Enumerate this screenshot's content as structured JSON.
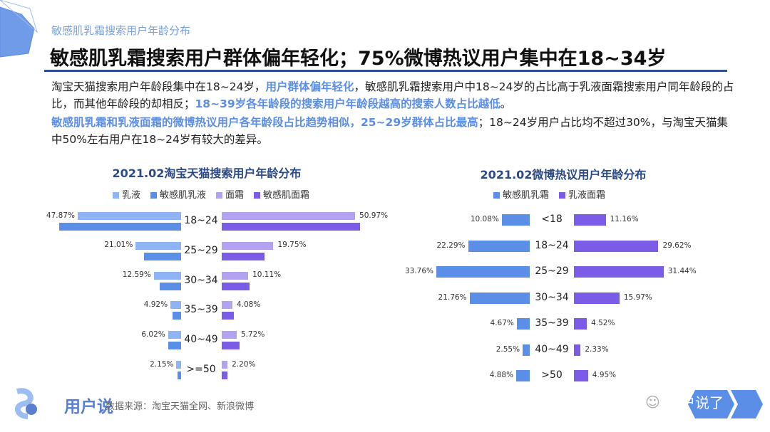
{
  "header": {
    "subtitle": "敏感肌乳霜搜索用户年龄分布",
    "title": "敏感肌乳霜搜索用户群体偏年轻化；75%微博热议用户集中在18~34岁"
  },
  "body": {
    "p1_a": "淘宝天猫搜索用户年龄段集中在18~24岁，",
    "p1_b": "用户群体偏年轻化",
    "p1_c": "，敏感肌乳霜搜索用户中18~24岁的占比高于乳液面霜搜索用户同年龄段的占比，而其他年龄段的却相反；",
    "p1_d": "18~39岁各年龄段的搜索用户年龄段越高的搜索人数占比越低",
    "p1_e": "。",
    "p2_a": "敏感肌乳霜和乳液面霜的微博热议用户各年龄段占比趋势相似，25~29岁群体占比最高",
    "p2_b": "；18~24岁用户占比均不超过30%，与淘宝天猫集中50%左右用户在18~24岁有较大的差异。"
  },
  "chart_data": [
    {
      "type": "bar",
      "title": "2021.02淘宝天猫搜索用户年龄分布",
      "orientation": "horizontal-butterfly",
      "categories": [
        "18~24",
        "25~29",
        "30~34",
        "35~39",
        "40~49",
        ">=50"
      ],
      "series": [
        {
          "name": "乳液",
          "side": "left",
          "color": "#8fb4f5",
          "values": [
            47.87,
            21.01,
            12.59,
            4.92,
            6.02,
            2.15
          ],
          "labels": [
            "47.87%",
            "21.01%",
            "12.59%",
            "4.92%",
            "6.02%",
            "2.15%"
          ]
        },
        {
          "name": "敏感肌乳液",
          "side": "left",
          "color": "#5b8ee6",
          "values": [
            56.4,
            17.2,
            9.9,
            4.0,
            5.9,
            1.8
          ]
        },
        {
          "name": "面霜",
          "side": "right",
          "color": "#b3a2f0",
          "values": [
            50.97,
            19.75,
            10.11,
            4.08,
            5.72,
            2.2
          ],
          "labels": [
            "50.97%",
            "19.75%",
            "10.11%",
            "4.08%",
            "5.72%",
            "2.20%"
          ]
        },
        {
          "name": "敏感肌面霜",
          "side": "right",
          "color": "#7a5ce6",
          "values": [
            52.9,
            16.3,
            10.6,
            4.6,
            6.8,
            2.2
          ]
        }
      ],
      "legend": "top"
    },
    {
      "type": "bar",
      "title": "2021.02微博热议用户年龄分布",
      "orientation": "horizontal-butterfly",
      "categories": [
        "<18",
        "18~24",
        "25~29",
        "30~34",
        "35~39",
        "40~49",
        ">50"
      ],
      "series": [
        {
          "name": "敏感肌乳霜",
          "side": "left",
          "color": "#5b8ee6",
          "values": [
            10.08,
            22.29,
            33.76,
            21.76,
            4.67,
            2.55,
            4.88
          ],
          "labels": [
            "10.08%",
            "22.29%",
            "33.76%",
            "21.76%",
            "4.67%",
            "2.55%",
            "4.88%"
          ]
        },
        {
          "name": "乳液面霜",
          "side": "right",
          "color": "#7a5ce6",
          "values": [
            11.16,
            29.62,
            31.44,
            15.97,
            4.52,
            2.33,
            4.95
          ],
          "labels": [
            "11.16%",
            "29.62%",
            "31.44%",
            "15.97%",
            "4.52%",
            "2.33%",
            "4.95%"
          ]
        }
      ],
      "legend": "top"
    }
  ],
  "footer": {
    "logo": "用户说",
    "source": "数据来源：淘宝天猫全网、新浪微博",
    "wechat": "用户说了"
  }
}
